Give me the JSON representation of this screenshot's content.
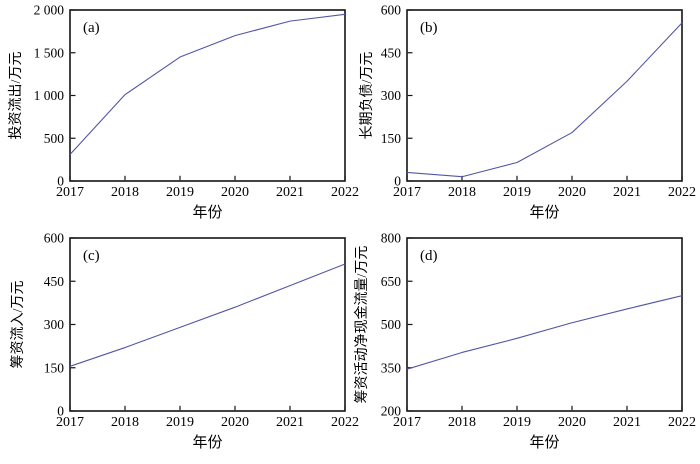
{
  "style": {
    "background": "#ffffff",
    "axis_color": "#141414",
    "line_color": "#5157a6"
  },
  "chart_data": [
    {
      "type": "line",
      "id": "a",
      "panel_tag": "(a)",
      "xlabel": "年份",
      "ylabel": "投资流出/万元",
      "x": [
        2017,
        2018,
        2019,
        2020,
        2021,
        2022
      ],
      "xtick_labels": [
        "2017",
        "2018",
        "2019",
        "2020",
        "2021",
        "2022"
      ],
      "values": [
        310,
        1010,
        1450,
        1700,
        1870,
        1950
      ],
      "ylim": [
        0,
        2000
      ],
      "yticks": [
        0,
        500,
        1000,
        1500,
        2000
      ],
      "ytick_labels": [
        "0",
        "500",
        "1 000",
        "1 500",
        "2 000"
      ],
      "grid": false,
      "legend": "none"
    },
    {
      "type": "line",
      "id": "b",
      "panel_tag": "(b)",
      "xlabel": "年份",
      "ylabel": "长期负债/万元",
      "x": [
        2017,
        2018,
        2019,
        2020,
        2021,
        2022
      ],
      "xtick_labels": [
        "2017",
        "2018",
        "2019",
        "2020",
        "2021",
        "2022"
      ],
      "values": [
        30,
        15,
        65,
        170,
        350,
        555
      ],
      "ylim": [
        0,
        600
      ],
      "yticks": [
        0,
        150,
        300,
        450,
        600
      ],
      "ytick_labels": [
        "0",
        "150",
        "300",
        "450",
        "600"
      ],
      "grid": false,
      "legend": "none"
    },
    {
      "type": "line",
      "id": "c",
      "panel_tag": "(c)",
      "xlabel": "年份",
      "ylabel": "筹资流入/万元",
      "x": [
        2017,
        2018,
        2019,
        2020,
        2021,
        2022
      ],
      "xtick_labels": [
        "2017",
        "2018",
        "2019",
        "2020",
        "2021",
        "2022"
      ],
      "values": [
        155,
        220,
        290,
        360,
        435,
        510
      ],
      "ylim": [
        0,
        600
      ],
      "yticks": [
        0,
        150,
        300,
        450,
        600
      ],
      "ytick_labels": [
        "0",
        "150",
        "300",
        "450",
        "600"
      ],
      "grid": false,
      "legend": "none"
    },
    {
      "type": "line",
      "id": "d",
      "panel_tag": "(d)",
      "xlabel": "年份",
      "ylabel": "筹资活动净现金流量/万元",
      "x": [
        2017,
        2018,
        2019,
        2020,
        2021,
        2022
      ],
      "xtick_labels": [
        "2017",
        "2018",
        "2019",
        "2020",
        "2021",
        "2022"
      ],
      "values": [
        345,
        403,
        452,
        506,
        554,
        600
      ],
      "ylim": [
        200,
        800
      ],
      "yticks": [
        200,
        350,
        500,
        650,
        800
      ],
      "ytick_labels": [
        "200",
        "350",
        "500",
        "650",
        "800"
      ],
      "grid": false,
      "legend": "none"
    }
  ]
}
